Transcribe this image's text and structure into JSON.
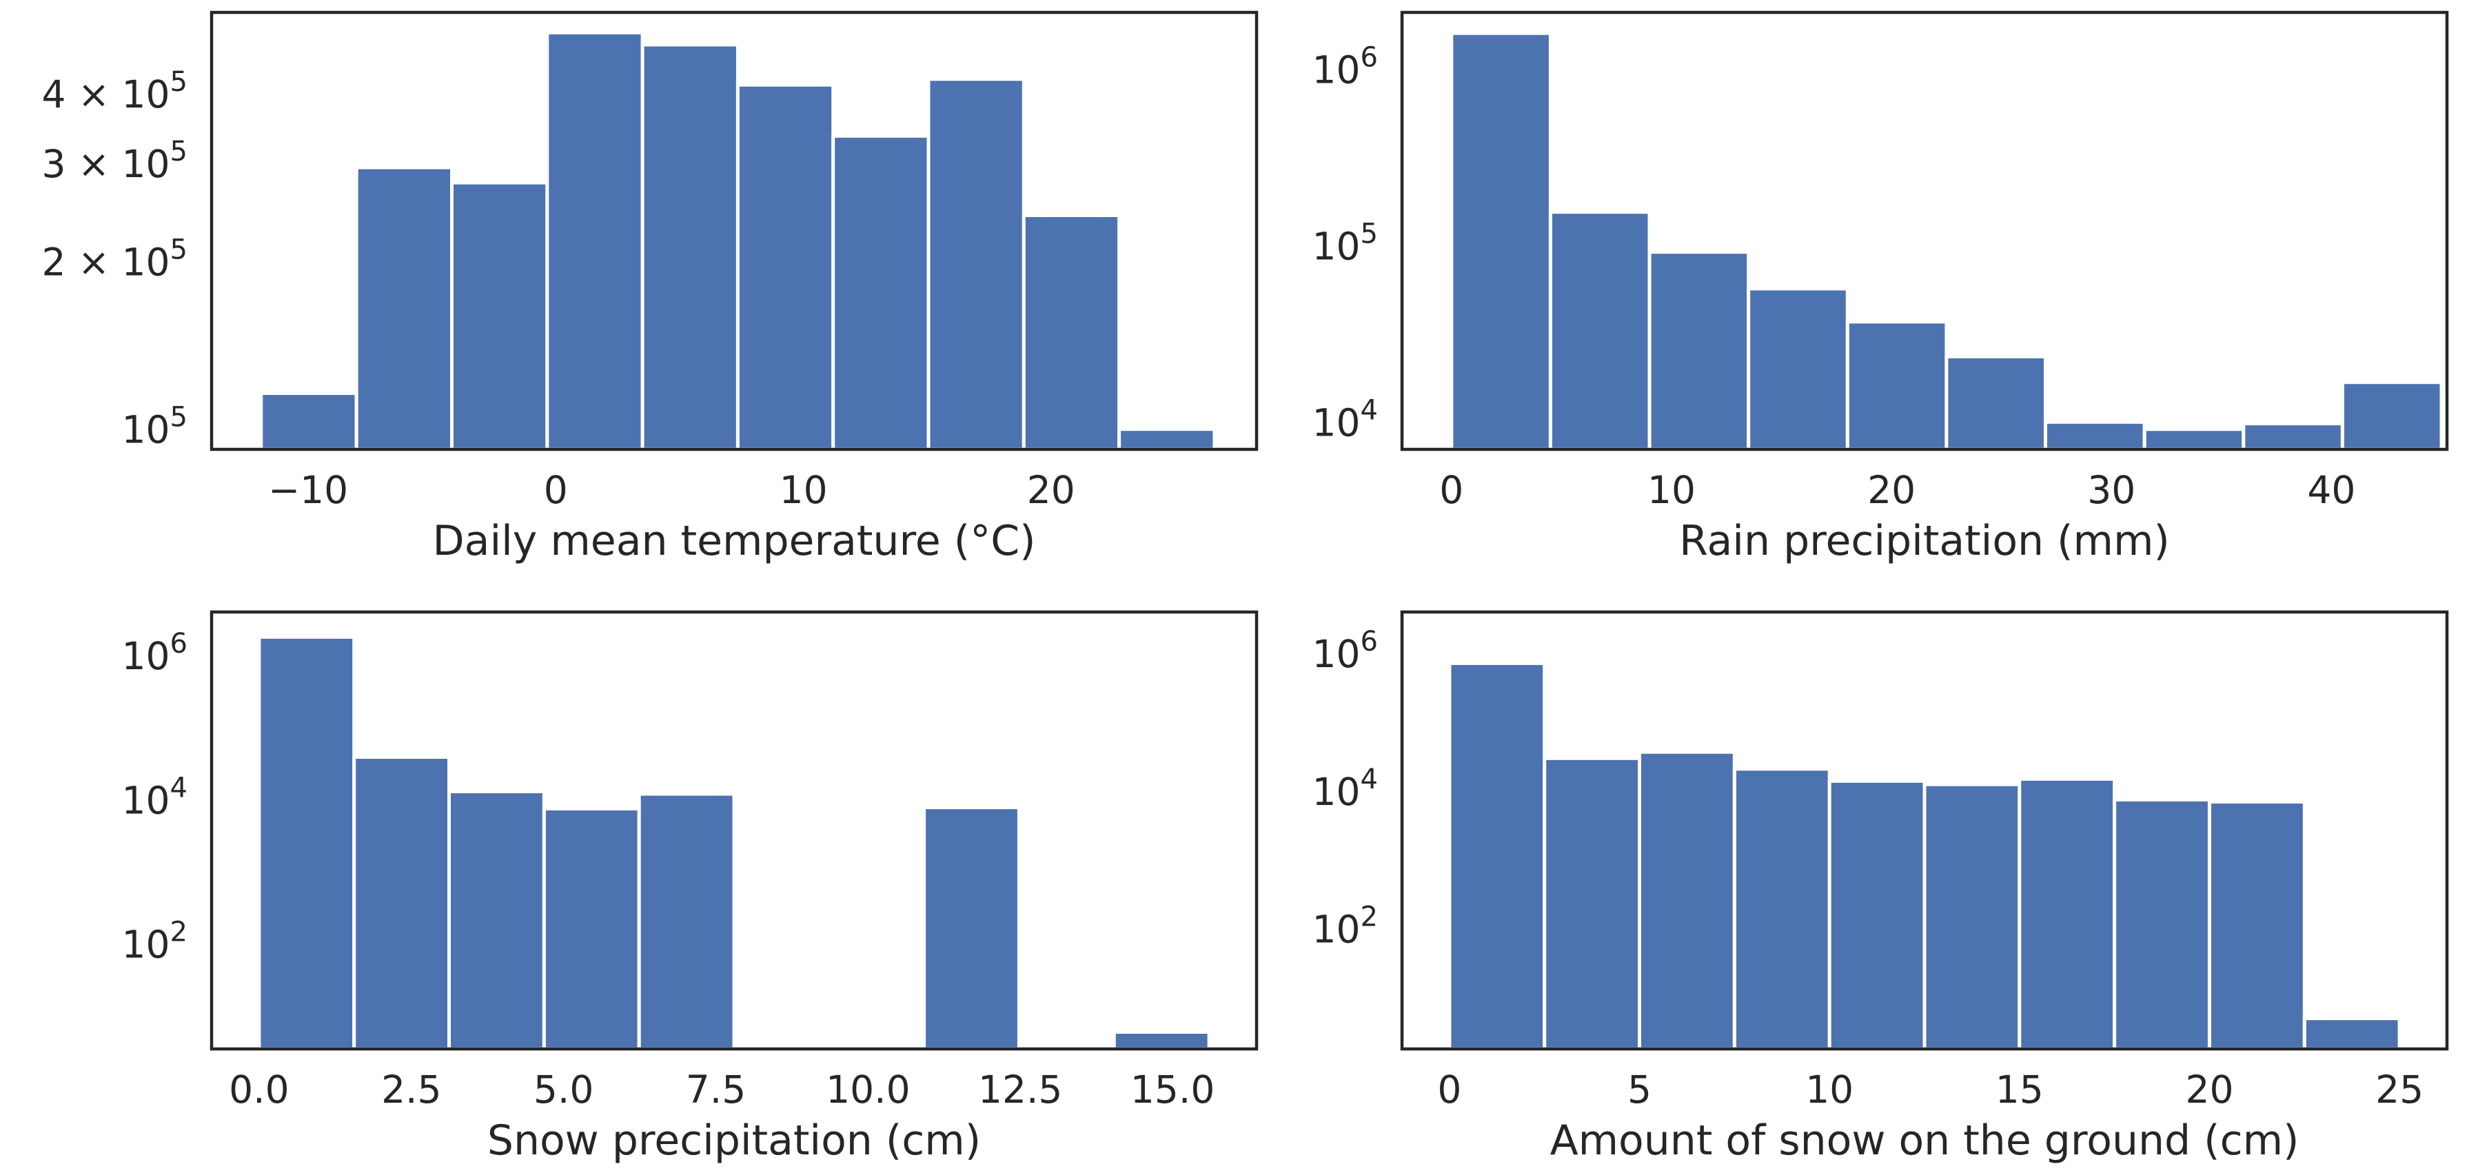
{
  "chart_data": [
    {
      "type": "bar",
      "title": "",
      "xlabel": "Daily mean temperature (°C)",
      "ylabel": "",
      "yscale": "log",
      "xlim": [
        -13.9,
        28.3
      ],
      "ylim": [
        92000,
        560000
      ],
      "bin_edges": [
        -11.9,
        -8.05,
        -4.2,
        -0.35,
        3.5,
        7.35,
        11.2,
        15.05,
        18.9,
        22.75,
        26.6
      ],
      "values": [
        116000,
        295000,
        277000,
        515000,
        490000,
        415000,
        336000,
        425000,
        242000,
        100000
      ],
      "xticks": [
        -10,
        0,
        10,
        20
      ],
      "xtick_labels": [
        "−10",
        "0",
        "10",
        "20"
      ],
      "yticks": [
        100000,
        200000,
        300000,
        400000
      ],
      "ytick_labels": [
        {
          "base": "10",
          "exp": "5"
        },
        {
          "base": "2 × 10",
          "exp": "5"
        },
        {
          "base": "3 × 10",
          "exp": "5"
        },
        {
          "base": "4 × 10",
          "exp": "5"
        }
      ]
    },
    {
      "type": "bar",
      "title": "",
      "xlabel": "Rain precipitation (mm)",
      "ylabel": "",
      "yscale": "log",
      "xlim": [
        -2.25,
        45.25
      ],
      "ylim": [
        7000,
        2100000
      ],
      "bin_edges": [
        0,
        4.5,
        9,
        13.5,
        18,
        22.5,
        27,
        31.5,
        36,
        40.5,
        45
      ],
      "values": [
        1600000,
        155000,
        92000,
        57000,
        37000,
        23500,
        10000,
        9100,
        9800,
        16800
      ],
      "xticks": [
        0,
        10,
        20,
        30,
        40
      ],
      "xtick_labels": [
        "0",
        "10",
        "20",
        "30",
        "40"
      ],
      "yticks": [
        10000,
        100000,
        1000000
      ],
      "ytick_labels": [
        {
          "base": "10",
          "exp": "4"
        },
        {
          "base": "10",
          "exp": "5"
        },
        {
          "base": "10",
          "exp": "6"
        }
      ]
    },
    {
      "type": "bar",
      "title": "",
      "xlabel": "Snow precipitation (cm)",
      "ylabel": "",
      "yscale": "log",
      "xlim": [
        -0.78,
        16.38
      ],
      "ylim": [
        3.5,
        4000000
      ],
      "bin_edges": [
        0,
        1.56,
        3.12,
        4.68,
        6.24,
        7.8,
        9.36,
        10.92,
        12.48,
        14.04,
        15.6
      ],
      "values": [
        1800000,
        39000,
        13000,
        7500,
        12000,
        0,
        0,
        7800,
        0,
        6
      ],
      "xticks": [
        0,
        2.5,
        5,
        7.5,
        10,
        12.5,
        15
      ],
      "xtick_labels": [
        "0.0",
        "2.5",
        "5.0",
        "7.5",
        "10.0",
        "12.5",
        "15.0"
      ],
      "yticks": [
        100,
        10000,
        1000000
      ],
      "ytick_labels": [
        {
          "base": "10",
          "exp": "2"
        },
        {
          "base": "10",
          "exp": "4"
        },
        {
          "base": "10",
          "exp": "6"
        }
      ]
    },
    {
      "type": "bar",
      "title": "",
      "xlabel": "Amount of snow on the ground (cm)",
      "ylabel": "",
      "yscale": "log",
      "xlim": [
        -1.25,
        26.25
      ],
      "ylim": [
        1.8,
        4000000
      ],
      "bin_edges": [
        0,
        2.5,
        5,
        7.5,
        10,
        12.5,
        15,
        17.5,
        20,
        22.5,
        25
      ],
      "values": [
        720000,
        30000,
        37000,
        21000,
        14000,
        12500,
        15000,
        7500,
        7000,
        5
      ],
      "xticks": [
        0,
        5,
        10,
        15,
        20,
        25
      ],
      "xtick_labels": [
        "0",
        "5",
        "10",
        "15",
        "20",
        "25"
      ],
      "yticks": [
        100,
        10000,
        1000000
      ],
      "ytick_labels": [
        {
          "base": "10",
          "exp": "2"
        },
        {
          "base": "10",
          "exp": "4"
        },
        {
          "base": "10",
          "exp": "6"
        }
      ]
    }
  ]
}
